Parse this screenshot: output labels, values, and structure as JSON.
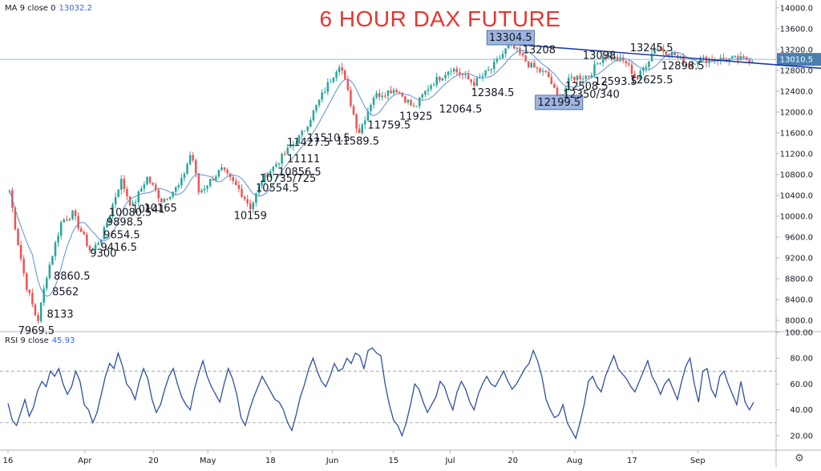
{
  "chart_data": [
    {
      "type": "candlestick",
      "title": "6 HOUR DAX FUTURE",
      "indicator": {
        "name": "MA 9 close 0",
        "value": "13032.2"
      },
      "last_price_label": "13010.5",
      "ylim": [
        7800,
        14150
      ],
      "y_ticks": [
        "8000.0",
        "8400.0",
        "8800.0",
        "9200.0",
        "9600.0",
        "10000.0",
        "10400.0",
        "10800.0",
        "11200.0",
        "11600.0",
        "12000.0",
        "12400.0",
        "12800.0",
        "13200.0",
        "13600.0",
        "14000.0"
      ],
      "x_ticks": [
        "16",
        "Apr",
        "20",
        "May",
        "18",
        "Jun",
        "15",
        "Jul",
        "20",
        "Aug",
        "17",
        "Sep"
      ],
      "trendline": [
        {
          "x": 0.674,
          "y": 13304.5
        },
        {
          "x": 1.0,
          "y": 12840
        }
      ],
      "anchors": [
        {
          "x": 0.0,
          "y": 10500
        },
        {
          "x": 0.01,
          "y": 9600
        },
        {
          "x": 0.022,
          "y": 8700
        },
        {
          "x": 0.038,
          "y": 7969.5
        },
        {
          "x": 0.05,
          "y": 8860.5
        },
        {
          "x": 0.07,
          "y": 9900
        },
        {
          "x": 0.085,
          "y": 10050
        },
        {
          "x": 0.11,
          "y": 9300
        },
        {
          "x": 0.126,
          "y": 9654.5
        },
        {
          "x": 0.15,
          "y": 10700
        },
        {
          "x": 0.165,
          "y": 10165
        },
        {
          "x": 0.185,
          "y": 10750
        },
        {
          "x": 0.205,
          "y": 10300
        },
        {
          "x": 0.23,
          "y": 10600
        },
        {
          "x": 0.245,
          "y": 11250
        },
        {
          "x": 0.255,
          "y": 10450
        },
        {
          "x": 0.285,
          "y": 10900
        },
        {
          "x": 0.31,
          "y": 10500
        },
        {
          "x": 0.325,
          "y": 10159
        },
        {
          "x": 0.34,
          "y": 10700
        },
        {
          "x": 0.365,
          "y": 11100
        },
        {
          "x": 0.395,
          "y": 11600
        },
        {
          "x": 0.42,
          "y": 12300
        },
        {
          "x": 0.445,
          "y": 12950
        },
        {
          "x": 0.47,
          "y": 11589.5
        },
        {
          "x": 0.49,
          "y": 12300
        },
        {
          "x": 0.52,
          "y": 12450
        },
        {
          "x": 0.545,
          "y": 12064.5
        },
        {
          "x": 0.565,
          "y": 12500
        },
        {
          "x": 0.595,
          "y": 12850
        },
        {
          "x": 0.625,
          "y": 12550
        },
        {
          "x": 0.65,
          "y": 12850
        },
        {
          "x": 0.674,
          "y": 13304.5
        },
        {
          "x": 0.7,
          "y": 12900
        },
        {
          "x": 0.725,
          "y": 12700
        },
        {
          "x": 0.74,
          "y": 12199.5
        },
        {
          "x": 0.755,
          "y": 12650
        },
        {
          "x": 0.78,
          "y": 12700
        },
        {
          "x": 0.8,
          "y": 13098
        },
        {
          "x": 0.83,
          "y": 12950
        },
        {
          "x": 0.845,
          "y": 12625.5
        },
        {
          "x": 0.87,
          "y": 13245.5
        },
        {
          "x": 0.895,
          "y": 13100
        },
        {
          "x": 0.915,
          "y": 12898.5
        },
        {
          "x": 0.925,
          "y": 13010.5
        }
      ],
      "annotations": [
        {
          "text": "7969.5",
          "x": 0.038,
          "y": 7969.5,
          "dx": 0,
          "dy": 15,
          "anchor": "middle"
        },
        {
          "text": "8133",
          "x": 0.05,
          "y": 8133,
          "dx": 2,
          "dy": 5,
          "anchor": "start"
        },
        {
          "text": "8562",
          "x": 0.055,
          "y": 8562,
          "dx": 4,
          "dy": 5,
          "anchor": "start"
        },
        {
          "text": "8860.5",
          "x": 0.057,
          "y": 8860.5,
          "dx": 4,
          "dy": 5,
          "anchor": "start"
        },
        {
          "text": "9300",
          "x": 0.11,
          "y": 9300,
          "dx": 0,
          "dy": 5,
          "anchor": "start"
        },
        {
          "text": "9416.5",
          "x": 0.122,
          "y": 9416.5,
          "dx": 2,
          "dy": 5,
          "anchor": "start"
        },
        {
          "text": "9654.5",
          "x": 0.126,
          "y": 9654.5,
          "dx": 2,
          "dy": 5,
          "anchor": "start"
        },
        {
          "text": "9898.5",
          "x": 0.13,
          "y": 9898.5,
          "dx": 2,
          "dy": 5,
          "anchor": "start"
        },
        {
          "text": "10080.5",
          "x": 0.133,
          "y": 10080.5,
          "dx": 2,
          "dy": 5,
          "anchor": "start"
        },
        {
          "text": "10141",
          "x": 0.166,
          "y": 10141,
          "dx": 0,
          "dy": 5,
          "anchor": "start"
        },
        {
          "text": "10165",
          "x": 0.18,
          "y": 10165,
          "dx": 2,
          "dy": 5,
          "anchor": "start"
        },
        {
          "text": "10159",
          "x": 0.325,
          "y": 10159,
          "dx": 0,
          "dy": 14,
          "anchor": "middle"
        },
        {
          "text": "10554.5",
          "x": 0.328,
          "y": 10554.5,
          "dx": 4,
          "dy": 5,
          "anchor": "start"
        },
        {
          "text": "10735/725",
          "x": 0.333,
          "y": 10735,
          "dx": 4,
          "dy": 5,
          "anchor": "start"
        },
        {
          "text": "10856.5",
          "x": 0.358,
          "y": 10856.5,
          "dx": 4,
          "dy": 5,
          "anchor": "start"
        },
        {
          "text": "11111",
          "x": 0.372,
          "y": 11111,
          "dx": 2,
          "dy": 5,
          "anchor": "start"
        },
        {
          "text": "11427.5",
          "x": 0.372,
          "y": 11427.5,
          "dx": 2,
          "dy": 5,
          "anchor": "start"
        },
        {
          "text": "11510.5",
          "x": 0.43,
          "y": 11510.5,
          "dx": 0,
          "dy": 5,
          "anchor": "middle"
        },
        {
          "text": "11589.5",
          "x": 0.469,
          "y": 11589.5,
          "dx": 0,
          "dy": 14,
          "anchor": "middle"
        },
        {
          "text": "11759.5",
          "x": 0.48,
          "y": 11759.5,
          "dx": 2,
          "dy": 5,
          "anchor": "start"
        },
        {
          "text": "11925",
          "x": 0.547,
          "y": 11925,
          "dx": 0,
          "dy": 5,
          "anchor": "middle"
        },
        {
          "text": "12064.5",
          "x": 0.576,
          "y": 12064.5,
          "dx": 2,
          "dy": 5,
          "anchor": "start"
        },
        {
          "text": "12384.5",
          "x": 0.65,
          "y": 12384.5,
          "dx": 0,
          "dy": 5,
          "anchor": "middle"
        },
        {
          "text": "13304.5",
          "x": 0.674,
          "y": 13304.5,
          "dx": 0,
          "dy": -4,
          "anchor": "middle",
          "box": true
        },
        {
          "text": "13208",
          "x": 0.69,
          "y": 13208,
          "dx": 0,
          "dy": 5,
          "anchor": "start"
        },
        {
          "text": "12199.5",
          "x": 0.739,
          "y": 12199.5,
          "dx": 0,
          "dy": 5,
          "anchor": "middle",
          "box": true
        },
        {
          "text": "12350/340",
          "x": 0.74,
          "y": 12350,
          "dx": 4,
          "dy": 5,
          "anchor": "start"
        },
        {
          "text": "12508.5",
          "x": 0.745,
          "y": 12508.5,
          "dx": 2,
          "dy": 5,
          "anchor": "start"
        },
        {
          "text": "12593.5",
          "x": 0.815,
          "y": 12593.5,
          "dx": 0,
          "dy": 5,
          "anchor": "middle"
        },
        {
          "text": "13098",
          "x": 0.793,
          "y": 13098,
          "dx": 0,
          "dy": 5,
          "anchor": "middle"
        },
        {
          "text": "13245.5",
          "x": 0.863,
          "y": 13245.5,
          "dx": 0,
          "dy": 5,
          "anchor": "middle"
        },
        {
          "text": "12625.5",
          "x": 0.863,
          "y": 12625.5,
          "dx": 0,
          "dy": 5,
          "anchor": "middle"
        },
        {
          "text": "12898.5",
          "x": 0.905,
          "y": 12898.5,
          "dx": 0,
          "dy": 5,
          "anchor": "middle"
        }
      ]
    },
    {
      "type": "line",
      "name": "RSI 9 close",
      "value": "45.93",
      "ylim": [
        10,
        100
      ],
      "y_ticks": [
        "20.00",
        "40.00",
        "60.00",
        "80.00",
        "100.00"
      ],
      "bands": [
        30,
        70
      ],
      "values": [
        45,
        32,
        28,
        38,
        48,
        35,
        42,
        55,
        62,
        58,
        70,
        66,
        72,
        60,
        52,
        58,
        70,
        62,
        44,
        40,
        30,
        38,
        52,
        66,
        76,
        72,
        84,
        74,
        60,
        56,
        48,
        62,
        72,
        64,
        48,
        38,
        44,
        56,
        66,
        72,
        60,
        50,
        44,
        40,
        56,
        68,
        78,
        66,
        58,
        52,
        46,
        60,
        72,
        64,
        52,
        34,
        28,
        40,
        50,
        58,
        66,
        60,
        54,
        48,
        46,
        40,
        30,
        24,
        36,
        50,
        60,
        72,
        80,
        70,
        62,
        58,
        66,
        76,
        70,
        72,
        80,
        76,
        84,
        82,
        72,
        86,
        88,
        84,
        82,
        60,
        44,
        32,
        28,
        20,
        30,
        44,
        60,
        56,
        46,
        38,
        44,
        50,
        62,
        58,
        48,
        40,
        54,
        62,
        56,
        46,
        40,
        52,
        60,
        66,
        60,
        58,
        64,
        70,
        62,
        56,
        60,
        66,
        72,
        76,
        86,
        78,
        66,
        48,
        40,
        34,
        36,
        44,
        30,
        24,
        18,
        30,
        44,
        62,
        66,
        58,
        54,
        66,
        74,
        82,
        72,
        68,
        64,
        58,
        54,
        62,
        70,
        78,
        66,
        60,
        52,
        60,
        64,
        56,
        48,
        62,
        74,
        80,
        60,
        46,
        70,
        72,
        56,
        50,
        66,
        70,
        60,
        52,
        44,
        62,
        46,
        40,
        46
      ]
    }
  ]
}
